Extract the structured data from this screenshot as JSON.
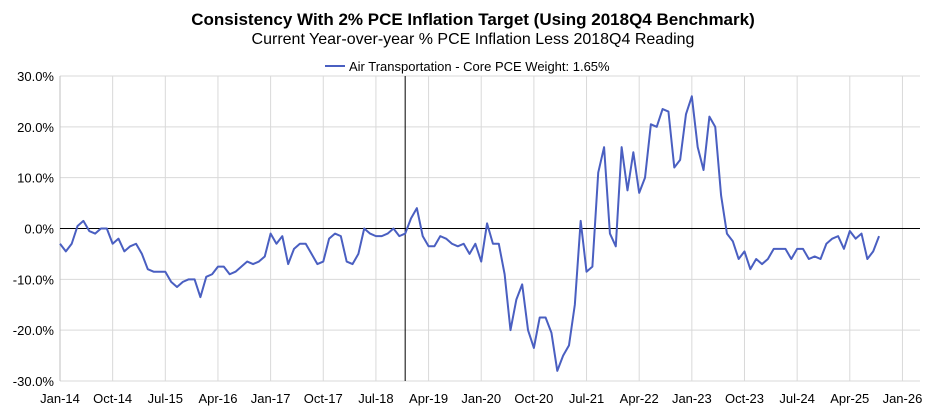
{
  "chart_data": {
    "type": "line",
    "title": "Consistency With 2% PCE Inflation Target (Using 2018Q4 Benchmark)",
    "subtitle": "Current Year-over-year % PCE Inflation Less 2018Q4 Reading",
    "xlabel": "",
    "ylabel": "",
    "ylim": [
      -30,
      30
    ],
    "y_ticks": [
      "30.0%",
      "20.0%",
      "10.0%",
      "0.0%",
      "-10.0%",
      "-20.0%",
      "-30.0%"
    ],
    "y_tick_values": [
      30,
      20,
      10,
      0,
      -10,
      -20,
      -30
    ],
    "x_ticks": [
      "Jan-14",
      "Oct-14",
      "Jul-15",
      "Apr-16",
      "Jan-17",
      "Oct-17",
      "Jul-18",
      "Apr-19",
      "Jan-20",
      "Oct-20",
      "Jul-21",
      "Apr-22",
      "Jan-23",
      "Oct-23",
      "Jul-24",
      "Apr-25",
      "Jan-26"
    ],
    "x_range_months": [
      0,
      147
    ],
    "grid": true,
    "legend_position": "top-center",
    "reference_line": {
      "label": "2018Q4 benchmark",
      "month_index": 59
    },
    "series": [
      {
        "name": "Air Transportation - Core PCE Weight: 1.65%",
        "color": "#4a5fc1",
        "values": [
          -3,
          -4.5,
          -3,
          0.5,
          1.5,
          -0.5,
          -1,
          0,
          0,
          -3,
          -2,
          -4.5,
          -3.5,
          -3,
          -5,
          -8,
          -8.5,
          -8.5,
          -8.5,
          -10.5,
          -11.5,
          -10.5,
          -10,
          -10,
          -13.5,
          -9.5,
          -9,
          -7.5,
          -7.5,
          -9,
          -8.5,
          -7.5,
          -6.5,
          -7,
          -6.5,
          -5.5,
          -1,
          -3,
          -1.5,
          -7,
          -4,
          -3,
          -3,
          -5,
          -7,
          -6.5,
          -2,
          -1,
          -1.5,
          -6.5,
          -7,
          -5,
          0,
          -1,
          -1.5,
          -1.5,
          -1,
          0,
          -1.5,
          -1,
          2,
          4,
          -1.5,
          -3.5,
          -3.5,
          -1.5,
          -2,
          -3,
          -3.5,
          -3,
          -5,
          -3,
          -6.5,
          1,
          -3,
          -3,
          -9,
          -20,
          -14,
          -11,
          -20,
          -23.5,
          -17.5,
          -17.5,
          -20.5,
          -28,
          -25,
          -23,
          -15,
          1.5,
          -8.5,
          -7.5,
          11,
          16,
          -1,
          -3.5,
          16,
          7.5,
          15,
          7,
          10,
          20.5,
          20,
          23.5,
          23,
          12,
          13.5,
          22.5,
          26,
          16,
          11.5,
          22,
          20,
          6.5,
          -1,
          -2.5,
          -6,
          -4.5,
          -8,
          -6,
          -7,
          -6,
          -4,
          -4,
          -4,
          -6,
          -4,
          -4,
          -6,
          -5.5,
          -6,
          -3,
          -2,
          -1.5,
          -4,
          -0.5,
          -2,
          -1,
          -6,
          -4.5,
          -1.5
        ]
      }
    ]
  }
}
